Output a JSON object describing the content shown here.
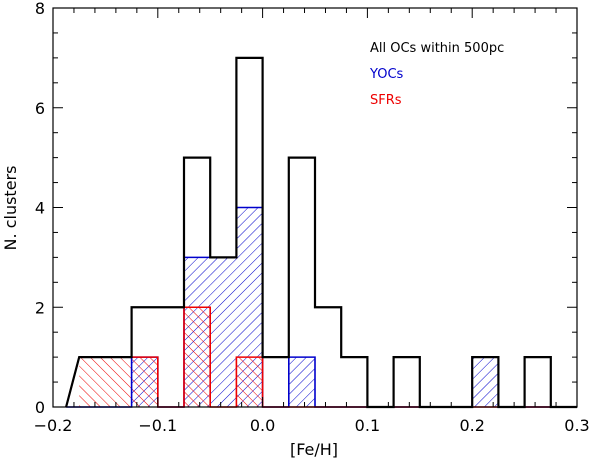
{
  "chart_data": {
    "type": "histogram",
    "xlabel": "[Fe/H]",
    "ylabel": "N. clusters",
    "xlim": [
      -0.2,
      0.3
    ],
    "ylim": [
      0,
      8
    ],
    "xticks": [
      -0.2,
      -0.1,
      0.0,
      0.1,
      0.2,
      0.3
    ],
    "xtick_labels": [
      "−0.2",
      "−0.1",
      "0.0",
      "0.1",
      "0.2",
      "0.3"
    ],
    "yticks": [
      0,
      2,
      4,
      6,
      8
    ],
    "ytick_labels": [
      "0",
      "2",
      "4",
      "6",
      "8"
    ],
    "bin_start": -0.175,
    "bin_width": 0.025,
    "bin_centers": [
      -0.1625,
      -0.1375,
      -0.1125,
      -0.0875,
      -0.0625,
      -0.0375,
      -0.0125,
      0.0125,
      0.0375,
      0.0625,
      0.0875,
      0.1125,
      0.1375,
      0.1625,
      0.1875,
      0.2125,
      0.2375,
      0.2625,
      0.2875
    ],
    "series": [
      {
        "name": "All OCs within 500pc",
        "color": "#000000",
        "hatch": "none",
        "values": [
          1,
          1,
          2,
          2,
          5,
          3,
          7,
          1,
          5,
          2,
          1,
          0,
          1,
          0,
          0,
          1,
          0,
          1,
          0
        ]
      },
      {
        "name": "YOCs",
        "color": "#0000cc",
        "hatch": "forward",
        "values": [
          0,
          0,
          1,
          0,
          3,
          3,
          4,
          0,
          1,
          0,
          0,
          0,
          0,
          0,
          0,
          1,
          0,
          0,
          0
        ]
      },
      {
        "name": "SFRs",
        "color": "#ee0000",
        "hatch": "backward",
        "values": [
          1,
          1,
          1,
          0,
          2,
          0,
          1,
          0,
          0,
          0,
          0,
          0,
          0,
          0,
          0,
          0,
          0,
          0,
          0
        ]
      }
    ],
    "legend": {
      "position": "top-right",
      "entries": [
        "All OCs within 500pc",
        "YOCs",
        "SFRs"
      ]
    }
  }
}
